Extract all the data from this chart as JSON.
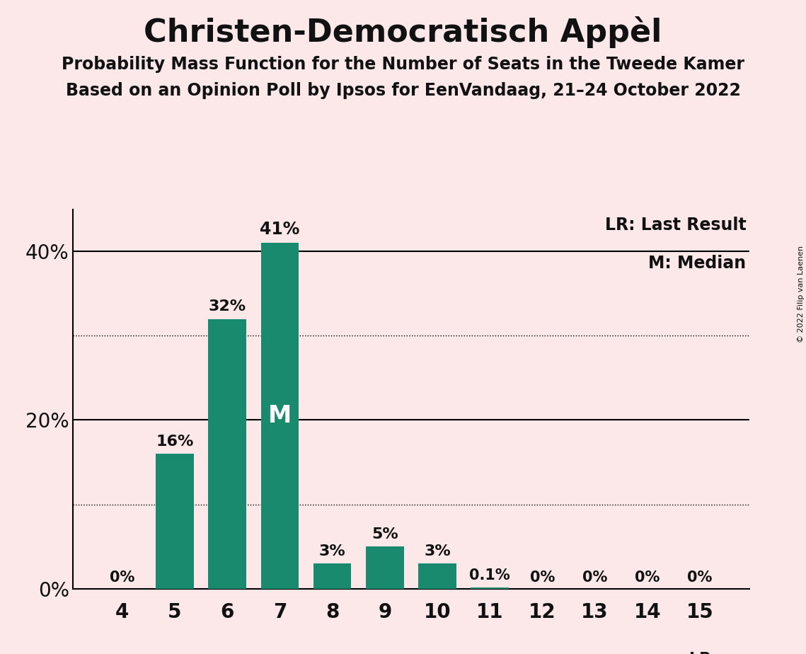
{
  "title": "Christen-Democratisch Appèl",
  "subtitle1": "Probability Mass Function for the Number of Seats in the Tweede Kamer",
  "subtitle2": "Based on an Opinion Poll by Ipsos for EenVandaag, 21–24 October 2022",
  "copyright": "© 2022 Filip van Laenen",
  "categories": [
    4,
    5,
    6,
    7,
    8,
    9,
    10,
    11,
    12,
    13,
    14,
    15
  ],
  "values": [
    0.0,
    16.0,
    32.0,
    41.0,
    3.0,
    5.0,
    3.0,
    0.1,
    0.0,
    0.0,
    0.0,
    0.0
  ],
  "bar_labels": [
    "0%",
    "16%",
    "32%",
    "41%",
    "3%",
    "5%",
    "3%",
    "0.1%",
    "0%",
    "0%",
    "0%",
    "0%"
  ],
  "bar_color": "#1a8a6e",
  "background_color": "#fce8e8",
  "title_color": "#111111",
  "text_color": "#111111",
  "median_seat": 7,
  "last_result_seat": 15,
  "legend_lr": "LR: Last Result",
  "legend_m": "M: Median",
  "ylabel_ticks": [
    0,
    20,
    40
  ],
  "ylim": [
    0,
    45
  ],
  "dotted_lines": [
    10,
    30
  ],
  "solid_lines": [
    20,
    40
  ],
  "title_fontsize": 32,
  "subtitle_fontsize": 17,
  "tick_fontsize": 20,
  "label_fontsize": 15,
  "legend_fontsize": 17
}
